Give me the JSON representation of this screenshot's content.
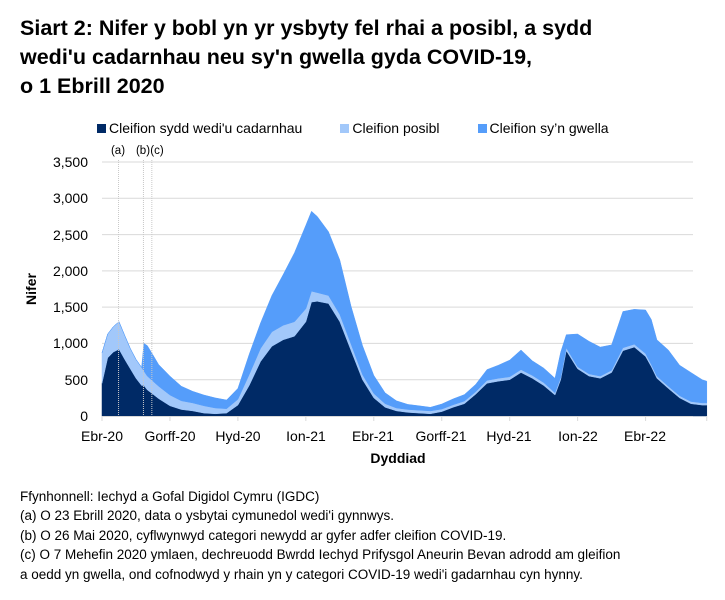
{
  "title": {
    "lines": [
      "Siart 2: Nifer y bobl yn yr ysbyty fel rhai a posibl, a sydd",
      "wedi'u cadarnhau neu sy'n gwella gyda COVID-19,",
      "o 1 Ebrill 2020"
    ]
  },
  "legend": [
    {
      "label": "Cleifion sydd wedi'u cadarnhau",
      "color": "#002a66"
    },
    {
      "label": "Cleifion posibl",
      "color": "#a2c8fa"
    },
    {
      "label": "Cleifion sy’n gwella",
      "color": "#559dfa"
    }
  ],
  "axes": {
    "y_title": "Nifer",
    "x_title": "Dyddiad",
    "y_ticks": [
      "0",
      "500",
      "1,000",
      "1,500",
      "2,000",
      "2,500",
      "3,000",
      "3,500"
    ],
    "x_ticks": [
      "Ebr-20",
      "Gorff-20",
      "Hyd-20",
      "Ion-21",
      "Ebr-21",
      "Gorff-21",
      "Hyd-21",
      "Ion-22",
      "Ebr-22"
    ]
  },
  "annotations": [
    {
      "label": "(a)",
      "x_month": 0.73
    },
    {
      "label": "(b)",
      "x_month": 1.83
    },
    {
      "label": "(c)",
      "x_month": 2.2
    }
  ],
  "footnotes": [
    "Ffynhonnell: Iechyd a Gofal Digidol Cymru (IGDC)",
    "(a) O 23 Ebrill 2020, data o ysbytai cymunedol wedi'i gynnwys.",
    "(b) O 26 Mai 2020, cyflwynwyd categori newydd ar gyfer adfer cleifion COVID-19.",
    "(c) O 7 Mehefin 2020 ymlaen, dechreuodd Bwrdd Iechyd Prifysgol Aneurin Bevan adrodd am gleifion",
    "a oedd yn gwella, ond cofnodwyd y rhain yn y categori COVID-19 wedi'i gadarnhau cyn hynny."
  ],
  "chart_data": {
    "type": "area",
    "stacked": true,
    "title": "Siart 2: Nifer y bobl yn yr ysbyty fel rhai a posibl, a sydd wedi'u cadarnhau neu sy'n gwella gyda COVID-19, o 1 Ebrill 2020",
    "xlabel": "Dyddiad",
    "ylabel": "Nifer",
    "ylim": [
      0,
      3500
    ],
    "grid": true,
    "legend_position": "top",
    "x_unit": "months since 1 Apr 2020",
    "x": [
      0,
      0.25,
      0.5,
      0.75,
      1,
      1.25,
      1.5,
      1.75,
      1.85,
      2,
      2.25,
      2.5,
      3,
      3.5,
      4,
      4.5,
      5,
      5.5,
      6,
      6.5,
      7,
      7.5,
      8,
      8.5,
      9,
      9.25,
      9.5,
      10,
      10.5,
      11,
      11.5,
      12,
      12.5,
      13,
      13.5,
      14,
      14.5,
      15,
      15.5,
      16,
      16.5,
      17,
      17.5,
      18,
      18.5,
      19,
      19.5,
      20,
      20.25,
      20.5,
      21,
      21.5,
      22,
      22.5,
      23,
      23.5,
      24,
      24.25,
      24.5,
      25,
      25.5,
      26,
      26.5,
      26.7
    ],
    "series": [
      {
        "name": "Cleifion sydd wedi'u cadarnhau",
        "values": [
          450,
          800,
          880,
          920,
          780,
          650,
          520,
          420,
          420,
          360,
          300,
          240,
          140,
          90,
          70,
          40,
          30,
          40,
          150,
          420,
          750,
          960,
          1050,
          1100,
          1300,
          1570,
          1580,
          1550,
          1300,
          900,
          500,
          250,
          120,
          70,
          50,
          40,
          30,
          60,
          120,
          170,
          300,
          450,
          480,
          500,
          600,
          520,
          420,
          290,
          500,
          900,
          650,
          550,
          520,
          600,
          900,
          950,
          820,
          680,
          520,
          380,
          250,
          170,
          150,
          150
        ]
      },
      {
        "name": "Cleifion posibl",
        "values": [
          420,
          330,
          350,
          380,
          330,
          280,
          260,
          250,
          200,
          190,
          180,
          170,
          150,
          120,
          110,
          100,
          80,
          60,
          80,
          150,
          180,
          200,
          200,
          200,
          180,
          150,
          120,
          110,
          100,
          90,
          70,
          60,
          50,
          40,
          40,
          40,
          40,
          35,
          35,
          35,
          35,
          40,
          40,
          40,
          40,
          40,
          40,
          30,
          30,
          40,
          30,
          30,
          30,
          30,
          40,
          40,
          40,
          30,
          30,
          30,
          30,
          30,
          30,
          30
        ]
      },
      {
        "name": "Cleifion sy’n gwella",
        "values": [
          0,
          0,
          0,
          0,
          0,
          0,
          0,
          0,
          380,
          420,
          360,
          300,
          260,
          200,
          160,
          150,
          140,
          120,
          150,
          280,
          350,
          500,
          700,
          950,
          1150,
          1100,
          1050,
          880,
          750,
          520,
          400,
          250,
          150,
          100,
          70,
          60,
          50,
          70,
          80,
          90,
          100,
          150,
          180,
          230,
          270,
          200,
          200,
          200,
          350,
          180,
          450,
          450,
          400,
          350,
          500,
          480,
          600,
          620,
          500,
          500,
          420,
          400,
          320,
          300
        ]
      }
    ]
  }
}
